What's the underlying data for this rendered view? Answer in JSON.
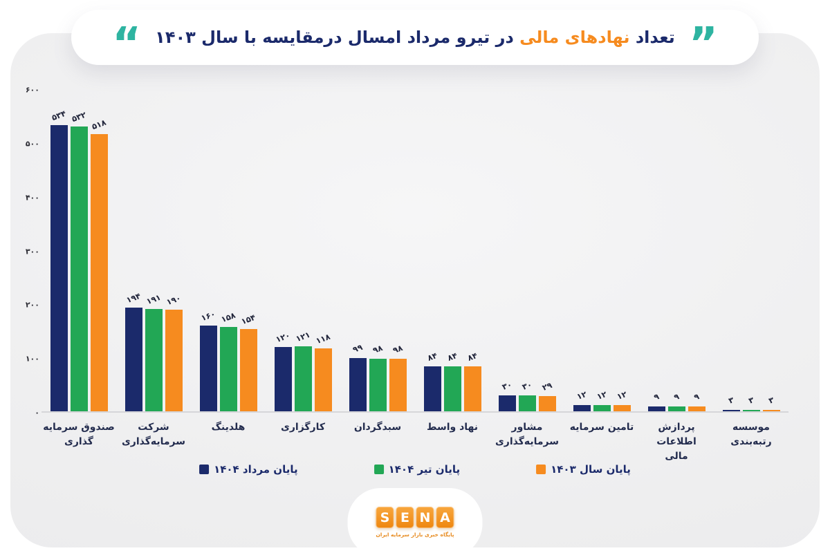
{
  "title": {
    "prefix": "تعداد",
    "highlight": "نهادهای مالی",
    "suffix": "در تیرو مرداد امسال درمقایسه با سال ۱۴۰۳",
    "text_color": "#1b2a6b",
    "highlight_color": "#f68b1f",
    "quote_color": "#2eb4a1",
    "quote_open": "“",
    "quote_close": "”"
  },
  "chart_data": {
    "type": "bar",
    "grid": false,
    "legend_position": "bottom",
    "ylim": [
      0,
      600
    ],
    "yticks": [
      {
        "value": 0,
        "label": "۰"
      },
      {
        "value": 100,
        "label": "۱۰۰"
      },
      {
        "value": 200,
        "label": "۲۰۰"
      },
      {
        "value": 300,
        "label": "۳۰۰"
      },
      {
        "value": 400,
        "label": "۴۰۰"
      },
      {
        "value": 500,
        "label": "۵۰۰"
      },
      {
        "value": 600,
        "label": "۶۰۰"
      }
    ],
    "categories": [
      {
        "name": "صندوق سرمایه گذاری",
        "lines": [
          "صندوق سرمایه",
          "گذاری"
        ]
      },
      {
        "name": "شرکت سرمایه‌گذاری",
        "lines": [
          "شرکت",
          "سرمایه‌گذاری"
        ]
      },
      {
        "name": "هلدینگ",
        "lines": [
          "هلدینگ"
        ]
      },
      {
        "name": "کارگزاری",
        "lines": [
          "کارگزاری"
        ]
      },
      {
        "name": "سبدگردان",
        "lines": [
          "سبدگردان"
        ]
      },
      {
        "name": "نهاد واسط",
        "lines": [
          "نهاد واسط"
        ]
      },
      {
        "name": "مشاور سرمایه‌گذاری",
        "lines": [
          "مشاور",
          "سرمایه‌گذاری"
        ]
      },
      {
        "name": "تامین سرمایه",
        "lines": [
          "تامین سرمایه"
        ]
      },
      {
        "name": "پردازش اطلاعات مالی",
        "lines": [
          "پردازش اطلاعات",
          "مالی"
        ]
      },
      {
        "name": "موسسه رتبه‌بندی",
        "lines": [
          "موسسه رتبه‌بندی"
        ]
      }
    ],
    "series": [
      {
        "key": "mordad-1404",
        "name": "پایان مرداد ۱۴۰۴",
        "color": "#1b2a6b",
        "values": [
          534,
          194,
          160,
          120,
          99,
          84,
          30,
          12,
          9,
          3
        ],
        "value_labels": [
          "۵۳۴",
          "۱۹۴",
          "۱۶۰",
          "۱۲۰",
          "۹۹",
          "۸۴",
          "۳۰",
          "۱۲",
          "۹",
          "۳"
        ]
      },
      {
        "key": "tir-1404",
        "name": "پایان تیر ۱۴۰۴",
        "color": "#22a755",
        "values": [
          532,
          191,
          158,
          121,
          98,
          84,
          30,
          12,
          9,
          3
        ],
        "value_labels": [
          "۵۳۲",
          "۱۹۱",
          "۱۵۸",
          "۱۲۱",
          "۹۸",
          "۸۴",
          "۳۰",
          "۱۲",
          "۹",
          "۳"
        ]
      },
      {
        "key": "year-1403",
        "name": "پایان سال ۱۴۰۳",
        "color": "#f68b1f",
        "values": [
          518,
          190,
          154,
          118,
          98,
          84,
          29,
          12,
          9,
          3
        ],
        "value_labels": [
          "۵۱۸",
          "۱۹۰",
          "۱۵۴",
          "۱۱۸",
          "۹۸",
          "۸۴",
          "۲۹",
          "۱۲",
          "۹",
          "۳"
        ]
      }
    ]
  },
  "footer": {
    "brand": "SENA",
    "letters": [
      "S",
      "E",
      "N",
      "A"
    ],
    "tagline": "پایگاه خبری بازار سرمایه ایران",
    "tile_color": "#ee860f"
  }
}
